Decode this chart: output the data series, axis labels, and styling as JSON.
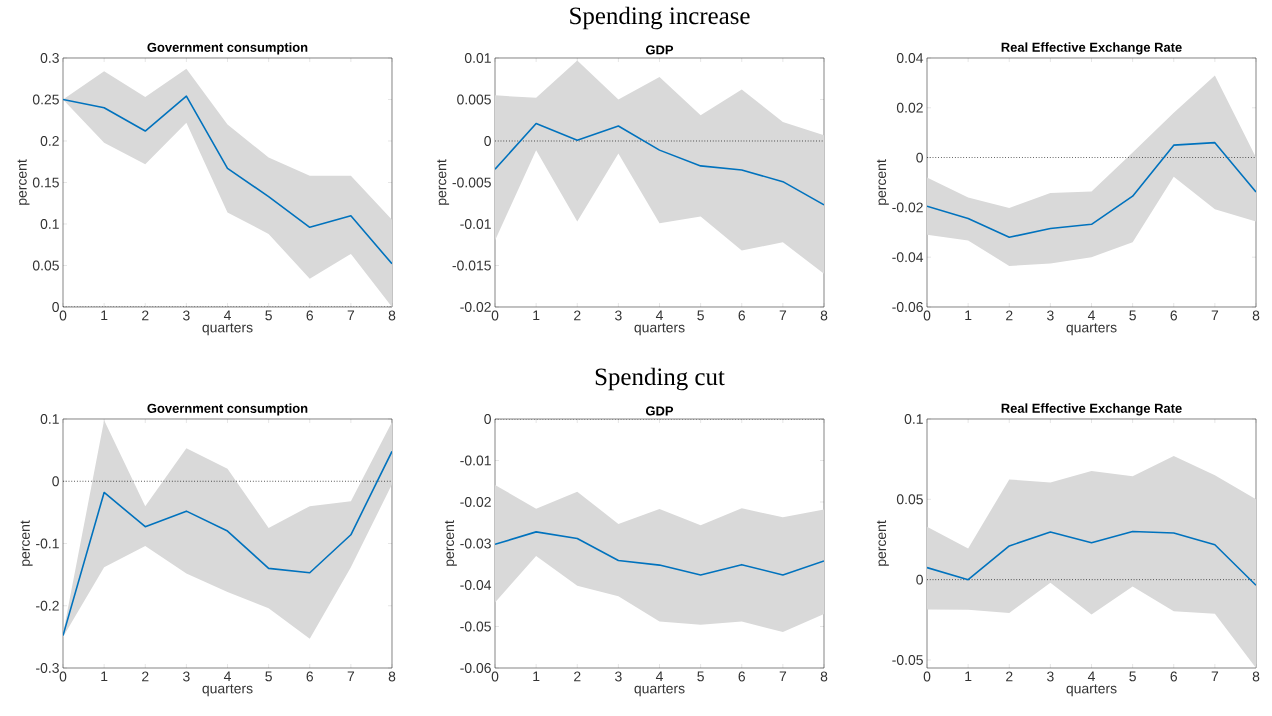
{
  "chart_data": [
    {
      "type": "line",
      "title": "Government consumption",
      "xlabel": "quarters",
      "ylabel": "percent",
      "x": [
        0,
        1,
        2,
        3,
        4,
        5,
        6,
        7,
        8
      ],
      "xlim": [
        0,
        8
      ],
      "xticks": [
        0,
        1,
        2,
        3,
        4,
        5,
        6,
        7,
        8
      ],
      "ylim": [
        0,
        0.3
      ],
      "yticks": [
        0,
        0.05,
        0.1,
        0.15,
        0.2,
        0.25,
        0.3
      ],
      "series": [
        {
          "color": "#0072bd",
          "values": [
            0.25,
            0.24,
            0.212,
            0.254,
            0.167,
            0.133,
            0.096,
            0.11,
            0.052
          ],
          "lower": [
            0.25,
            0.198,
            0.172,
            0.222,
            0.114,
            0.088,
            0.034,
            0.064,
            0.0
          ],
          "upper": [
            0.25,
            0.284,
            0.253,
            0.287,
            0.22,
            0.18,
            0.158,
            0.158,
            0.105
          ]
        }
      ],
      "ref_lines": [
        {
          "axis": "y",
          "value": 0,
          "line_style": "dotted",
          "color": "#000000"
        }
      ]
    },
    {
      "type": "line",
      "title": "GDP",
      "xlabel": "quarters",
      "ylabel": "percent",
      "annotations": [
        "Spending increase"
      ],
      "x": [
        0,
        1,
        2,
        3,
        4,
        5,
        6,
        7,
        8
      ],
      "xlim": [
        0,
        8
      ],
      "xticks": [
        0,
        1,
        2,
        3,
        4,
        5,
        6,
        7,
        8
      ],
      "ylim": [
        -0.02,
        0.01
      ],
      "yticks": [
        -0.02,
        -0.015,
        -0.01,
        -0.005,
        0,
        0.005,
        0.01
      ],
      "series": [
        {
          "color": "#0072bd",
          "values": [
            -0.0034,
            0.0021,
            0.0001,
            0.0018,
            -0.0011,
            -0.003,
            -0.0035,
            -0.0049,
            -0.0077
          ],
          "lower": [
            -0.012,
            -0.0011,
            -0.0097,
            -0.0015,
            -0.0099,
            -0.0091,
            -0.0132,
            -0.0122,
            -0.016
          ],
          "upper": [
            0.0055,
            0.0052,
            0.0097,
            0.005,
            0.0077,
            0.0031,
            0.0062,
            0.0023,
            0.0007
          ]
        }
      ],
      "ref_lines": [
        {
          "axis": "y",
          "value": 0,
          "line_style": "dotted",
          "color": "#000000"
        }
      ]
    },
    {
      "type": "line",
      "title": "Real Effective Exchange Rate",
      "xlabel": "quarters",
      "ylabel": "percent",
      "x": [
        0,
        1,
        2,
        3,
        4,
        5,
        6,
        7,
        8
      ],
      "xlim": [
        0,
        8
      ],
      "xticks": [
        0,
        1,
        2,
        3,
        4,
        5,
        6,
        7,
        8
      ],
      "ylim": [
        -0.06,
        0.04
      ],
      "yticks": [
        -0.06,
        -0.04,
        -0.02,
        0,
        0.02,
        0.04
      ],
      "series": [
        {
          "color": "#0072bd",
          "values": [
            -0.0195,
            -0.0245,
            -0.032,
            -0.0285,
            -0.0268,
            -0.0155,
            0.005,
            0.006,
            -0.0138
          ],
          "lower": [
            -0.031,
            -0.0333,
            -0.0435,
            -0.0425,
            -0.04,
            -0.034,
            -0.0077,
            -0.0207,
            -0.0257
          ],
          "upper": [
            -0.008,
            -0.016,
            -0.0202,
            -0.0142,
            -0.0136,
            0.002,
            0.018,
            0.033,
            0.0
          ]
        }
      ],
      "ref_lines": [
        {
          "axis": "y",
          "value": 0,
          "line_style": "dotted",
          "color": "#000000"
        }
      ]
    },
    {
      "type": "line",
      "title": "Government consumption",
      "xlabel": "quarters",
      "ylabel": "percent",
      "x": [
        0,
        1,
        2,
        3,
        4,
        5,
        6,
        7,
        8
      ],
      "xlim": [
        0,
        8
      ],
      "xticks": [
        0,
        1,
        2,
        3,
        4,
        5,
        6,
        7,
        8
      ],
      "ylim": [
        -0.3,
        0.1
      ],
      "yticks": [
        -0.3,
        -0.2,
        -0.1,
        0,
        0.1
      ],
      "series": [
        {
          "color": "#0072bd",
          "values": [
            -0.248,
            -0.018,
            -0.073,
            -0.048,
            -0.08,
            -0.14,
            -0.147,
            -0.086,
            0.048
          ],
          "lower": [
            -0.25,
            -0.138,
            -0.104,
            -0.148,
            -0.178,
            -0.204,
            -0.253,
            -0.138,
            -0.005
          ],
          "upper": [
            -0.245,
            0.098,
            -0.04,
            0.053,
            0.02,
            -0.075,
            -0.04,
            -0.032,
            0.095
          ]
        }
      ],
      "ref_lines": [
        {
          "axis": "y",
          "value": 0,
          "line_style": "dotted",
          "color": "#000000"
        }
      ]
    },
    {
      "type": "line",
      "title": "GDP",
      "xlabel": "quarters",
      "ylabel": "percent",
      "annotations": [
        "Spending cut"
      ],
      "x": [
        0,
        1,
        2,
        3,
        4,
        5,
        6,
        7,
        8
      ],
      "xlim": [
        0,
        8
      ],
      "xticks": [
        0,
        1,
        2,
        3,
        4,
        5,
        6,
        7,
        8
      ],
      "ylim": [
        -0.06,
        0
      ],
      "yticks": [
        -0.06,
        -0.05,
        -0.04,
        -0.03,
        -0.02,
        -0.01,
        0
      ],
      "series": [
        {
          "color": "#0072bd",
          "values": [
            -0.0302,
            -0.0272,
            -0.0288,
            -0.0341,
            -0.0352,
            -0.0376,
            -0.0351,
            -0.0376,
            -0.0342
          ],
          "lower": [
            -0.0442,
            -0.033,
            -0.0402,
            -0.0427,
            -0.0488,
            -0.0496,
            -0.0488,
            -0.0513,
            -0.047
          ],
          "upper": [
            -0.0159,
            -0.0216,
            -0.0175,
            -0.0253,
            -0.0217,
            -0.0256,
            -0.0215,
            -0.0237,
            -0.0218
          ]
        }
      ],
      "ref_lines": [
        {
          "axis": "y",
          "value": 0,
          "line_style": "dotted",
          "color": "#000000"
        }
      ]
    },
    {
      "type": "line",
      "title": "Real Effective Exchange Rate",
      "xlabel": "quarters",
      "ylabel": "percent",
      "x": [
        0,
        1,
        2,
        3,
        4,
        5,
        6,
        7,
        8
      ],
      "xlim": [
        0,
        8
      ],
      "xticks": [
        0,
        1,
        2,
        3,
        4,
        5,
        6,
        7,
        8
      ],
      "ylim": [
        -0.055,
        0.1
      ],
      "yticks": [
        -0.05,
        0,
        0.05,
        0.1
      ],
      "series": [
        {
          "color": "#0072bd",
          "values": [
            0.0075,
            0.0,
            0.021,
            0.0296,
            0.023,
            0.03,
            0.029,
            0.0217,
            -0.0035
          ],
          "lower": [
            -0.0186,
            -0.0188,
            -0.0207,
            -0.0019,
            -0.0217,
            -0.0042,
            -0.0196,
            -0.0213,
            -0.055
          ],
          "upper": [
            0.033,
            0.0194,
            0.0624,
            0.0605,
            0.0676,
            0.0643,
            0.077,
            0.065,
            0.05
          ]
        }
      ],
      "ref_lines": [
        {
          "axis": "y",
          "value": 0,
          "line_style": "dotted",
          "color": "#000000"
        }
      ]
    }
  ]
}
